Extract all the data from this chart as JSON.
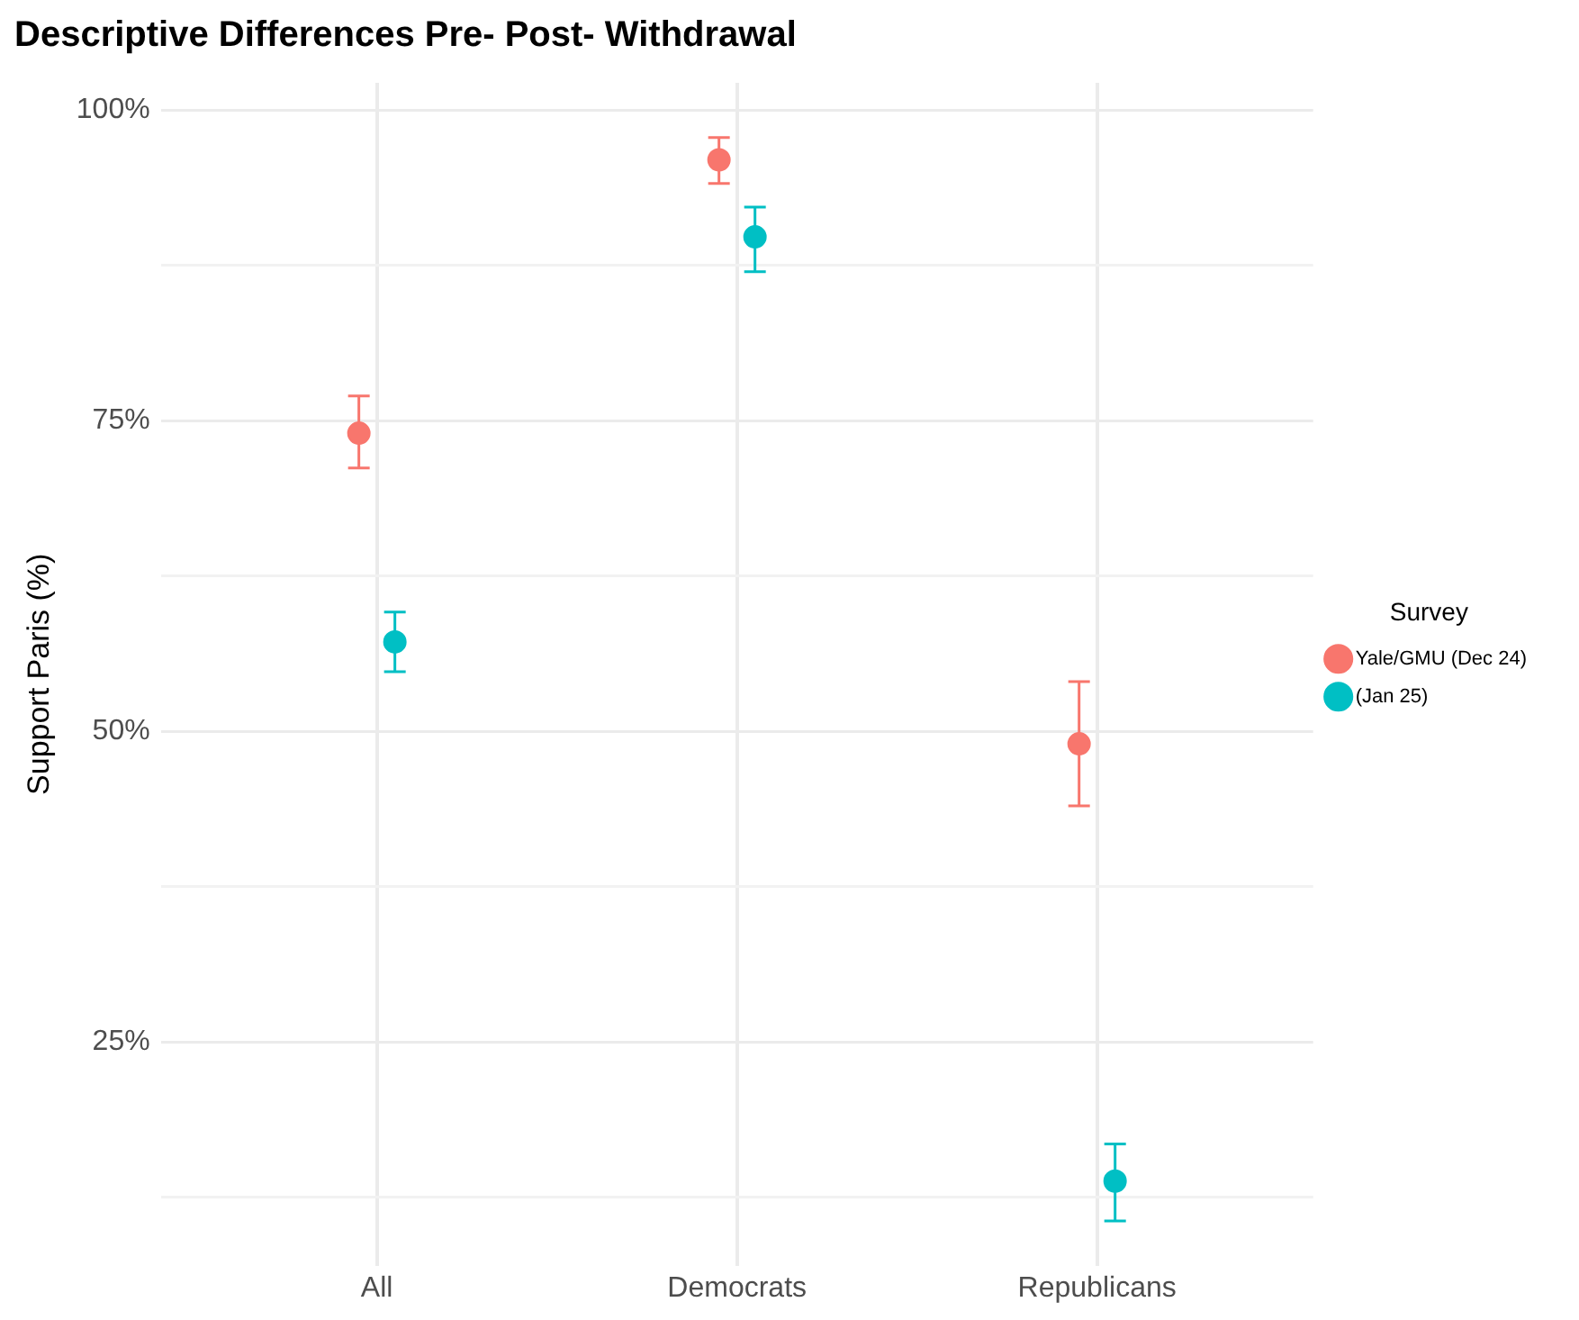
{
  "chart_data": {
    "type": "scatter",
    "title": "Descriptive Differences Pre- Post- Withdrawal",
    "ylabel": "Support Paris (%)",
    "legend_title": "Survey",
    "categories": [
      "All",
      "Democrats",
      "Republicans"
    ],
    "series": [
      {
        "name": "Yale/GMU (Dec 24)",
        "color": "#f8766d",
        "values": [
          74.0,
          96.0,
          49.0
        ],
        "errors": [
          [
            71.2,
            77.0
          ],
          [
            94.1,
            97.8
          ],
          [
            44.0,
            54.0
          ]
        ]
      },
      {
        "name": "(Jan 25)",
        "color": "#00bfc4",
        "values": [
          57.2,
          89.8,
          13.8
        ],
        "errors": [
          [
            54.8,
            59.6
          ],
          [
            87.0,
            92.2
          ],
          [
            10.6,
            16.8
          ]
        ]
      }
    ],
    "ylim": [
      7,
      102.2
    ],
    "yticks": [
      {
        "value": 12.5,
        "label": null
      },
      {
        "value": 25,
        "label": "25%"
      },
      {
        "value": 37.5,
        "label": null
      },
      {
        "value": 50,
        "label": "50%"
      },
      {
        "value": 62.5,
        "label": null
      },
      {
        "value": 75,
        "label": "75%"
      },
      {
        "value": 87.5,
        "label": null
      },
      {
        "value": 100,
        "label": "100%"
      }
    ],
    "grid": true,
    "legend": "right",
    "marker": "circle"
  }
}
